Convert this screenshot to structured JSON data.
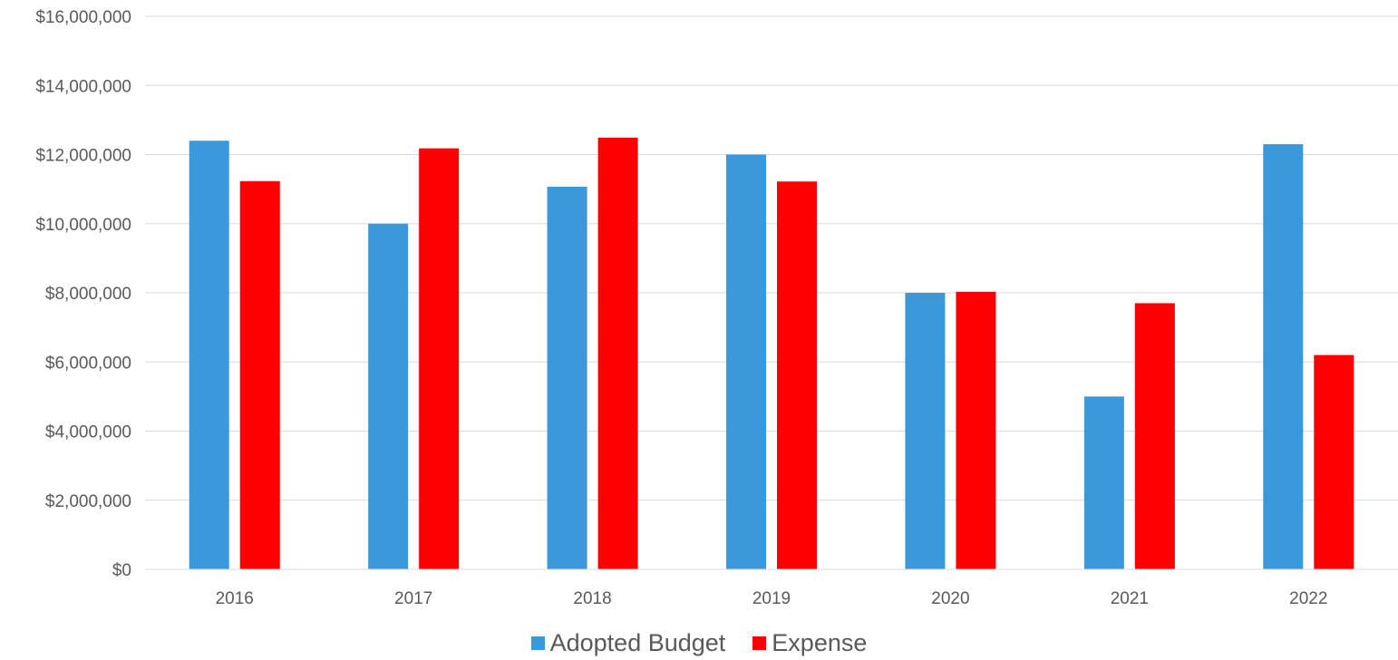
{
  "chart_data": {
    "type": "bar",
    "categories": [
      "2016",
      "2017",
      "2018",
      "2019",
      "2020",
      "2021",
      "2022"
    ],
    "series": [
      {
        "name": "Adopted Budget",
        "color": "#3a98db",
        "values": [
          12400000,
          10000000,
          11070000,
          12000000,
          8000000,
          5000000,
          12300000
        ]
      },
      {
        "name": "Expense",
        "color": "#ff0000",
        "values": [
          11230000,
          12180000,
          12490000,
          11220000,
          8030000,
          7700000,
          6200000
        ]
      }
    ],
    "ylim": [
      0,
      16000000
    ],
    "yticks": [
      0,
      2000000,
      4000000,
      6000000,
      8000000,
      10000000,
      12000000,
      14000000,
      16000000
    ],
    "ytick_labels": [
      "$0",
      "$2,000,000",
      "$4,000,000",
      "$6,000,000",
      "$8,000,000",
      "$10,000,000",
      "$12,000,000",
      "$14,000,000",
      "$16,000,000"
    ],
    "grid": true,
    "legend_position": "bottom",
    "gridline_color": "#d9d9d9"
  }
}
